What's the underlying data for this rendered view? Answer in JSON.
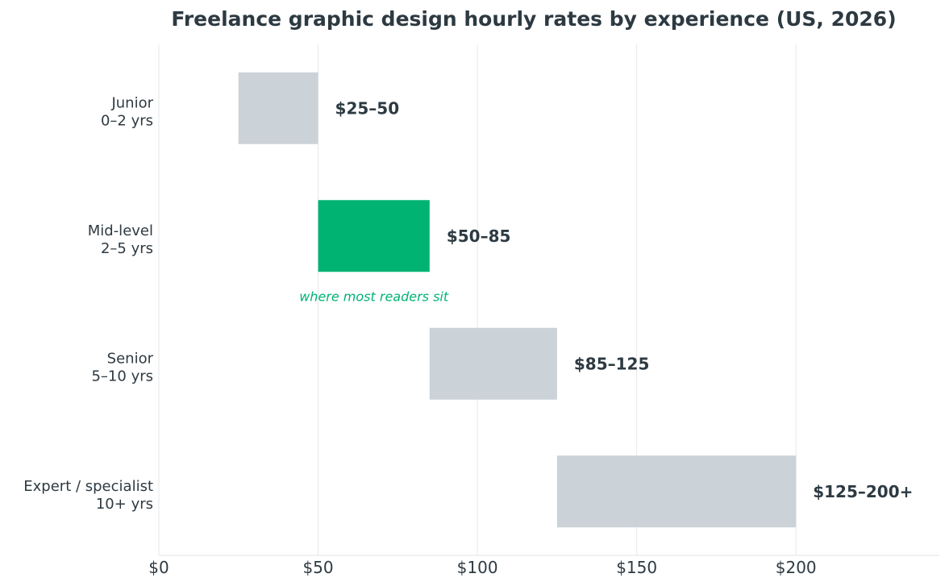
{
  "chart_data": {
    "type": "bar",
    "orientation": "horizontal-range",
    "title": "Freelance graphic design hourly rates by experience (US, 2026)",
    "xlabel": "",
    "ylabel": "",
    "xlim": [
      0,
      245
    ],
    "x_ticks": [
      {
        "value": 0,
        "label": "$0"
      },
      {
        "value": 50,
        "label": "$50"
      },
      {
        "value": 100,
        "label": "$100"
      },
      {
        "value": 150,
        "label": "$150"
      },
      {
        "value": 200,
        "label": "$200"
      }
    ],
    "grid": "vertical",
    "categories": [
      {
        "line1": "Junior",
        "line2": "0–2 yrs",
        "low": 25,
        "high": 50,
        "label": "$25–50",
        "highlight": false
      },
      {
        "line1": "Mid-level",
        "line2": "2–5 yrs",
        "low": 50,
        "high": 85,
        "label": "$50–85",
        "highlight": true
      },
      {
        "line1": "Senior",
        "line2": "5–10 yrs",
        "low": 85,
        "high": 125,
        "label": "$85–125",
        "highlight": false
      },
      {
        "line1": "Expert / specialist",
        "line2": "10+ yrs",
        "low": 125,
        "high": 200,
        "label": "$125–200+",
        "highlight": false
      }
    ],
    "annotation": {
      "text": "where most readers sit",
      "category_index": 1
    },
    "colors": {
      "bar": "#cbd2d8",
      "highlight": "#00b373",
      "text": "#2d3a42",
      "grid": "#e6e8ea"
    }
  }
}
